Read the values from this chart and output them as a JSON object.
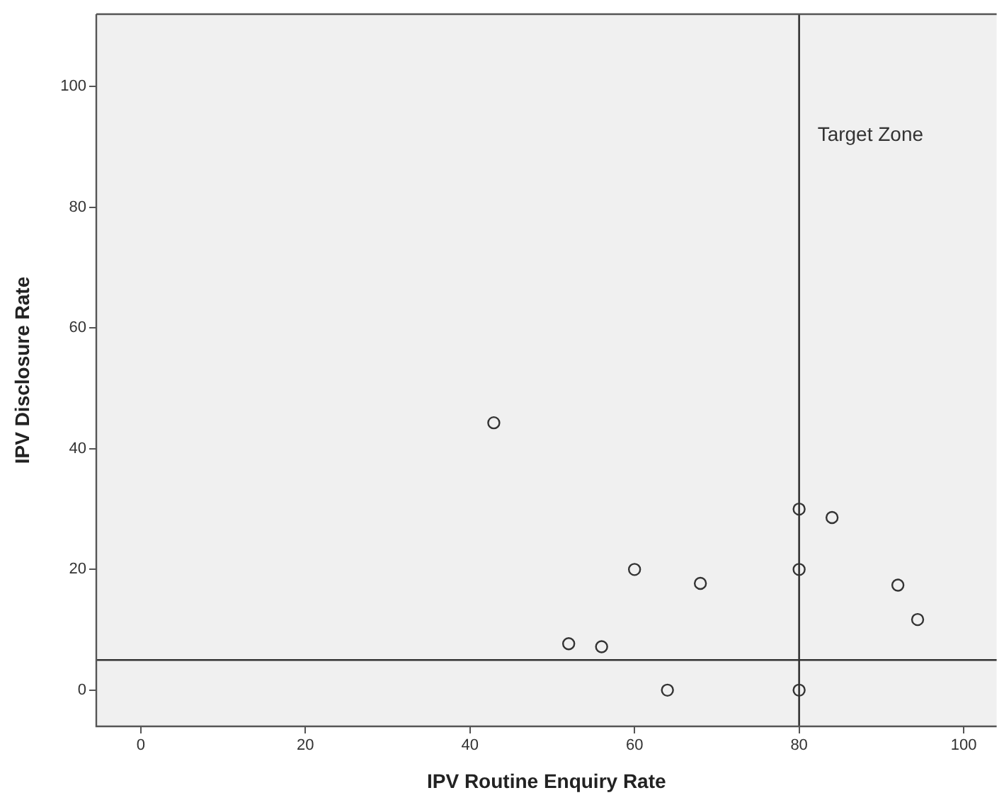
{
  "chart_data": {
    "type": "scatter",
    "xlabel": "IPV Routine Enquiry Rate",
    "ylabel": "IPV Disclosure Rate",
    "x": [
      42.9,
      80,
      84,
      60,
      68,
      80,
      92,
      94.4,
      52,
      56,
      64,
      80
    ],
    "values": [
      44.3,
      30,
      28.6,
      20,
      17.7,
      20,
      17.4,
      11.7,
      7.7,
      7.2,
      0,
      0
    ],
    "color": "#333333",
    "marker": "circle",
    "grid": false,
    "legend": false,
    "xlim": [
      -5.4,
      104
    ],
    "xticks": [
      0,
      20,
      40,
      60,
      80,
      100
    ],
    "ylim": [
      -6,
      112
    ],
    "yticks": [
      0,
      20,
      40,
      60,
      80,
      100
    ],
    "ref_lines": [
      {
        "axis": "x",
        "value": 80,
        "color": "#333333"
      },
      {
        "axis": "y",
        "value": 5,
        "color": "#333333"
      }
    ],
    "annotations": [
      "Target Zone"
    ]
  }
}
